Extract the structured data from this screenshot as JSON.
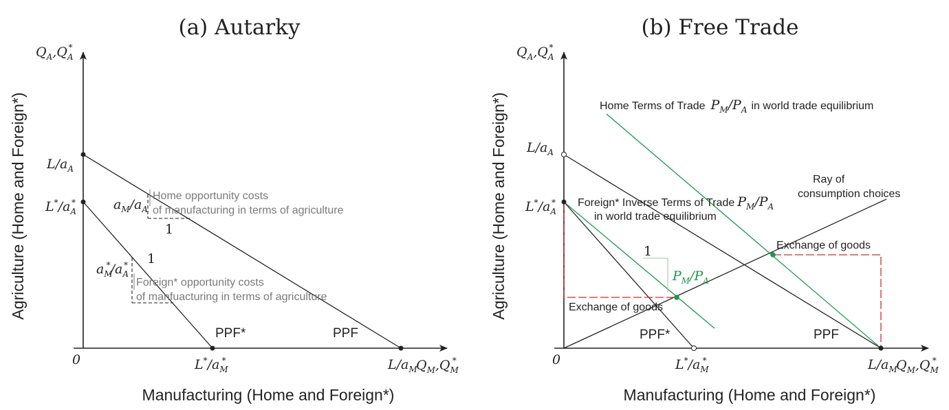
{
  "panel_a": {
    "title": "(a) Autarky",
    "y_axis_top": "Q",
    "y_axis_label": "Agriculture (Home and Foreign*)",
    "x_axis_label": "Manufacturing (Home and Foreign*)",
    "origin": "0",
    "home_slope_label": "Home opportunity costs",
    "home_slope_label_2": "of manufacturing in terms of agriculture",
    "foreign_slope_label": "Foreign* opportunity costs",
    "foreign_slope_label_2": "of manfuacturing in terms of agriculture",
    "one_home": "1",
    "one_foreign": "1",
    "ppf_foreign": "PPF*",
    "ppf_home": "PPF"
  },
  "panel_b": {
    "title": "(b) Free Trade",
    "y_axis_label": "Agriculture (Home and Foreign*)",
    "x_axis_label": "Manufacturing (Home and Foreign*)",
    "origin": "0",
    "home_tot_label": "Home Terms of Trade",
    "home_tot_label_2": "in world trade equilibrium",
    "foreign_tot_label": "Foreign* Inverse Terms of Trade",
    "foreign_tot_label_2": "in world trade equilibrium",
    "ray_label": "Ray of",
    "ray_label_2": "consumption choices",
    "exchange_home": "Exchange of goods",
    "exchange_foreign": "Exchange of goods",
    "one": "1",
    "ppf_foreign": "PPF*",
    "ppf_home": "PPF"
  },
  "colors": {
    "axis": "#222222",
    "terms_of_trade": "#1a9a4a",
    "exchange": "#d42a2a",
    "annotation": "#7a7a7a"
  }
}
